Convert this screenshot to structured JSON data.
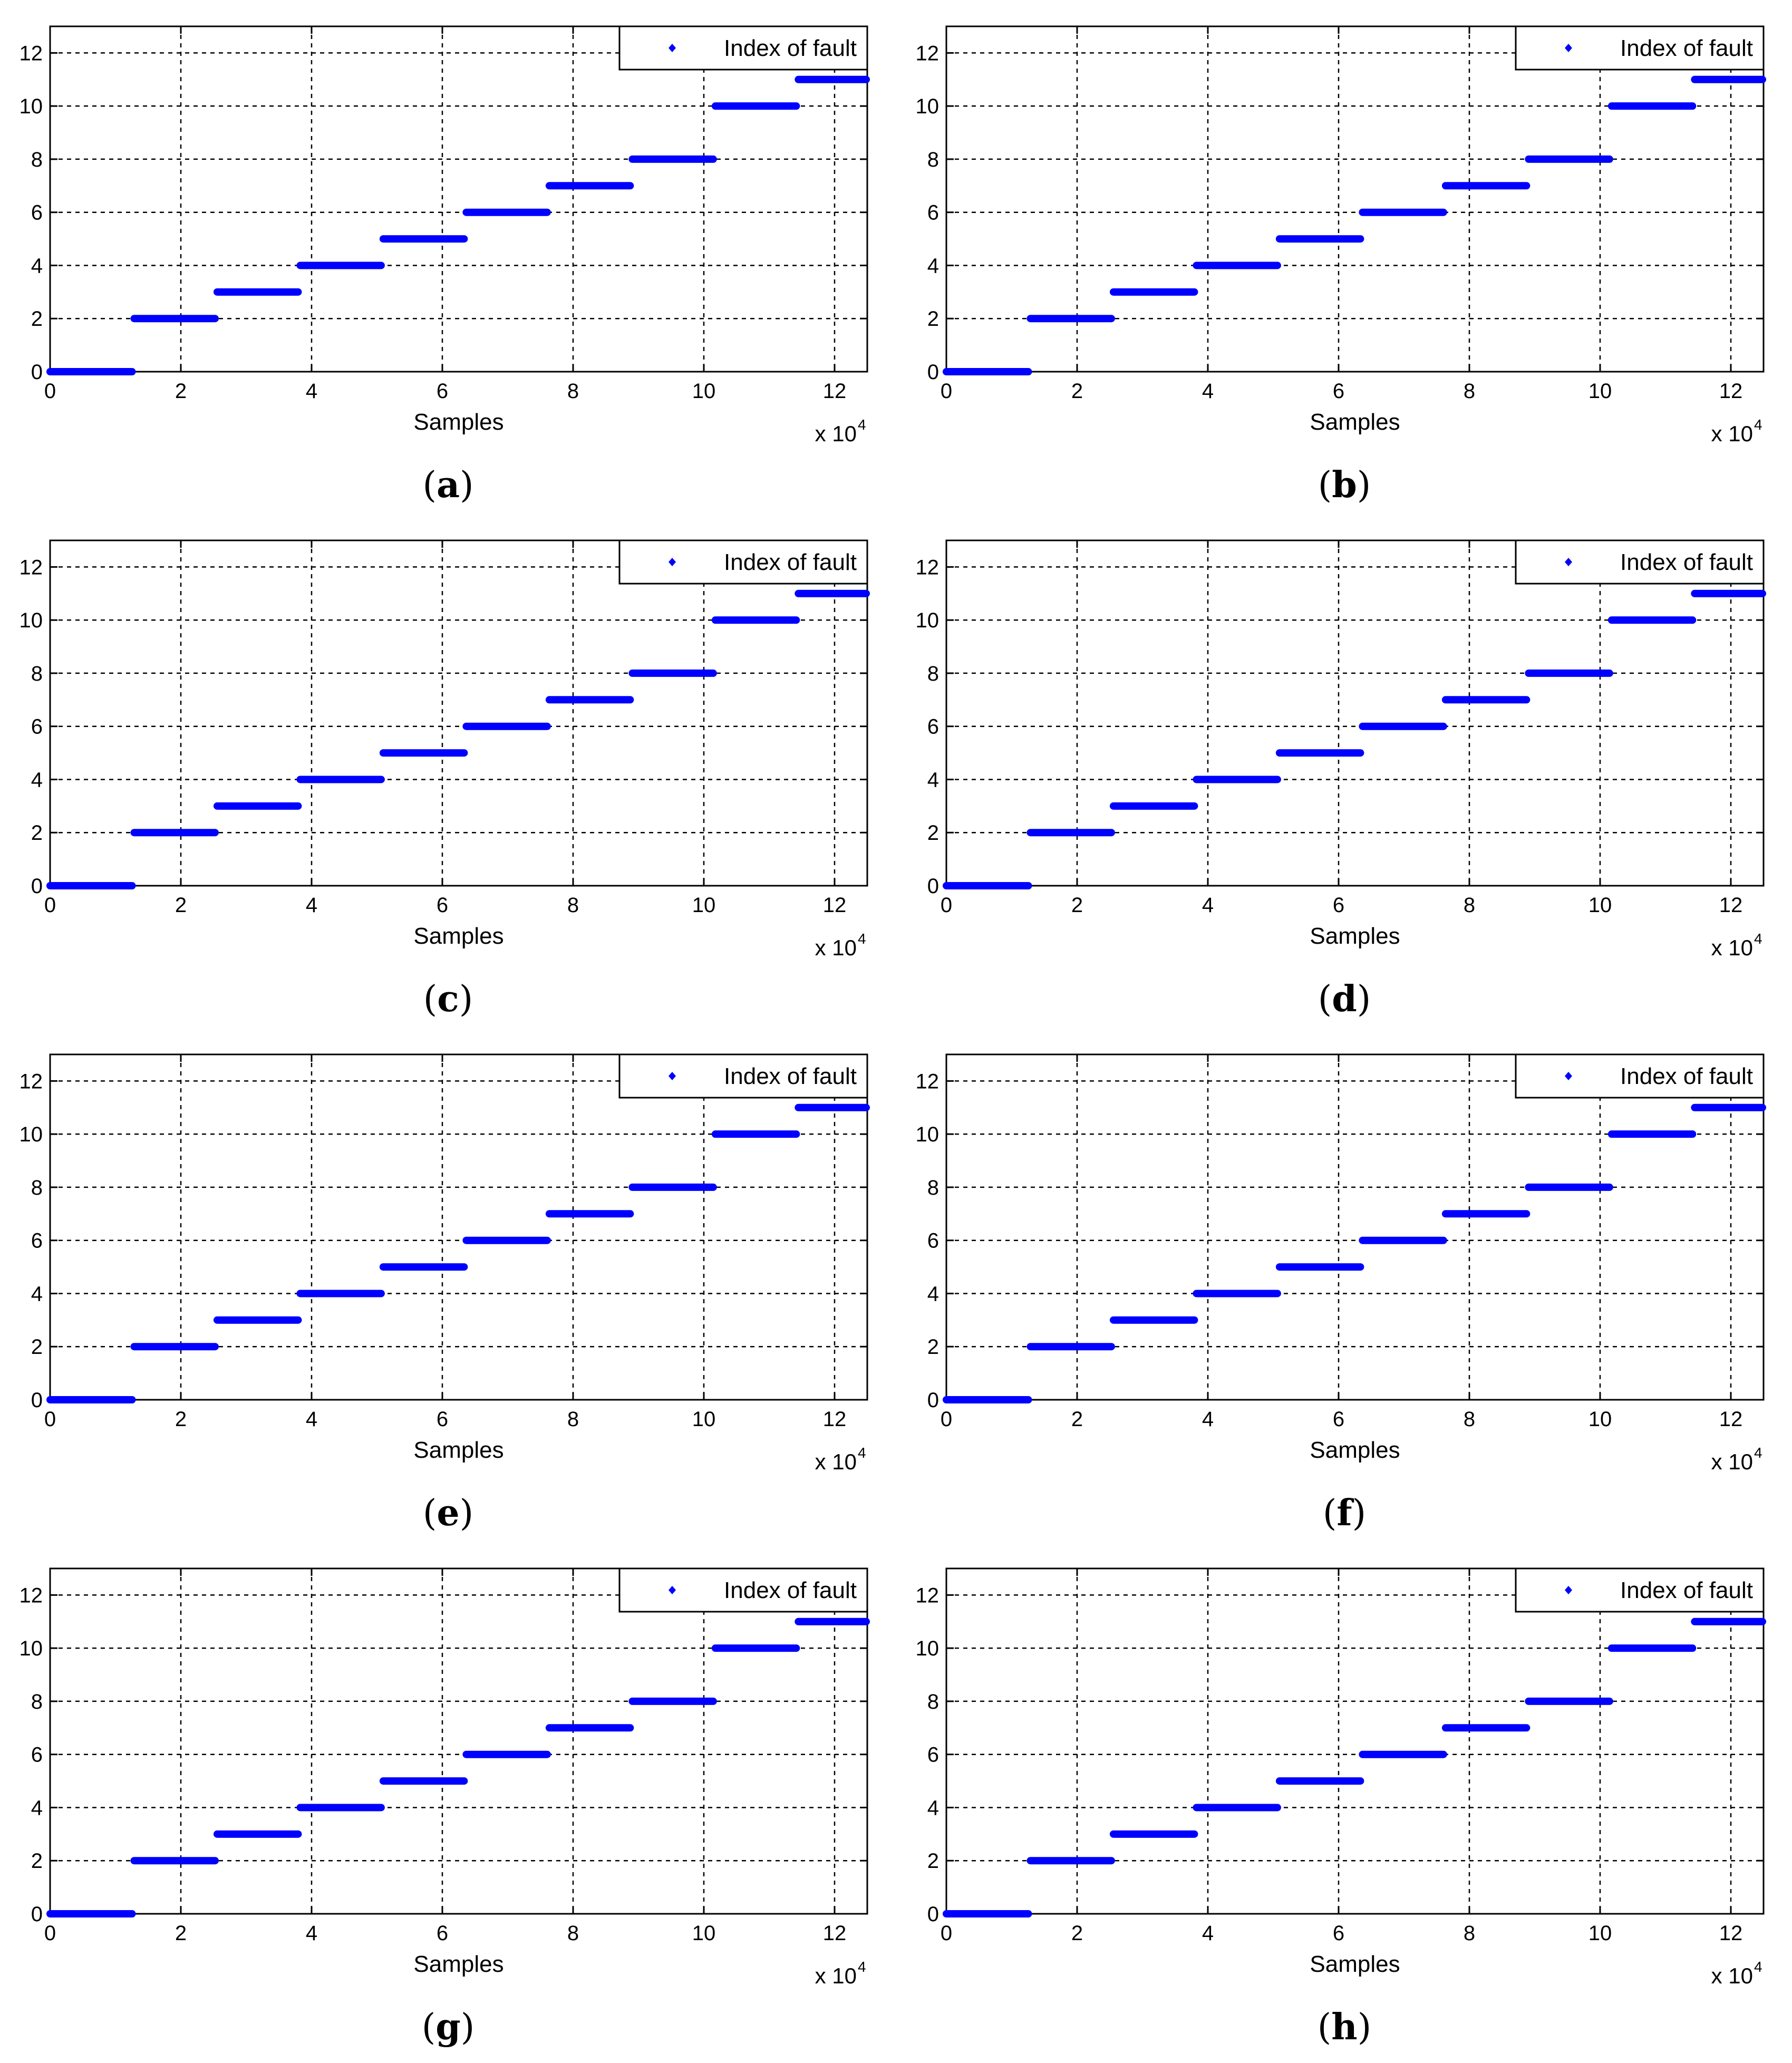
{
  "colors": {
    "series": "#0000ff",
    "axis": "#000000",
    "grid": "#000000"
  },
  "chart_data": [
    {
      "caption": "a",
      "type": "scatter",
      "xlabel": "Samples",
      "x_multiplier_base": "x 10",
      "x_multiplier_exp": "4",
      "xlim": [
        0,
        12.5
      ],
      "ylim": [
        0,
        13
      ],
      "xticks": [
        "0",
        "2",
        "4",
        "6",
        "8",
        "10",
        "12"
      ],
      "yticks": [
        "0",
        "2",
        "4",
        "6",
        "8",
        "10",
        "12"
      ],
      "grid": true,
      "legend": {
        "position": "top-right",
        "entries": [
          "Index of fault"
        ]
      },
      "series": [
        {
          "name": "Index of fault",
          "segments": [
            {
              "x0": 0,
              "x1": 1.27,
              "y": 0
            },
            {
              "x0": 1.27,
              "x1": 2.54,
              "y": 2
            },
            {
              "x0": 2.54,
              "x1": 3.81,
              "y": 3
            },
            {
              "x0": 3.81,
              "x1": 5.08,
              "y": 4
            },
            {
              "x0": 5.08,
              "x1": 6.35,
              "y": 5
            },
            {
              "x0": 6.35,
              "x1": 7.62,
              "y": 6
            },
            {
              "x0": 7.62,
              "x1": 8.89,
              "y": 7
            },
            {
              "x0": 8.89,
              "x1": 10.16,
              "y": 8
            },
            {
              "x0": 10.16,
              "x1": 11.43,
              "y": 10
            },
            {
              "x0": 11.43,
              "x1": 12.5,
              "y": 11
            }
          ]
        }
      ]
    },
    {
      "caption": "b",
      "type": "scatter",
      "xlabel": "Samples",
      "x_multiplier_base": "x 10",
      "x_multiplier_exp": "4",
      "xlim": [
        0,
        12.5
      ],
      "ylim": [
        0,
        13
      ],
      "xticks": [
        "0",
        "2",
        "4",
        "6",
        "8",
        "10",
        "12"
      ],
      "yticks": [
        "0",
        "2",
        "4",
        "6",
        "8",
        "10",
        "12"
      ],
      "grid": true,
      "legend": {
        "position": "top-right",
        "entries": [
          "Index of fault"
        ]
      },
      "series": [
        {
          "name": "Index of fault",
          "segments": [
            {
              "x0": 0,
              "x1": 1.27,
              "y": 0
            },
            {
              "x0": 1.27,
              "x1": 2.54,
              "y": 2
            },
            {
              "x0": 2.54,
              "x1": 3.81,
              "y": 3
            },
            {
              "x0": 3.81,
              "x1": 5.08,
              "y": 4
            },
            {
              "x0": 5.08,
              "x1": 6.35,
              "y": 5
            },
            {
              "x0": 6.35,
              "x1": 7.62,
              "y": 6
            },
            {
              "x0": 7.62,
              "x1": 8.89,
              "y": 7
            },
            {
              "x0": 8.89,
              "x1": 10.16,
              "y": 8
            },
            {
              "x0": 10.16,
              "x1": 11.43,
              "y": 10
            },
            {
              "x0": 11.43,
              "x1": 12.5,
              "y": 11
            }
          ]
        }
      ]
    },
    {
      "caption": "c",
      "type": "scatter",
      "xlabel": "Samples",
      "x_multiplier_base": "x 10",
      "x_multiplier_exp": "4",
      "xlim": [
        0,
        12.5
      ],
      "ylim": [
        0,
        13
      ],
      "xticks": [
        "0",
        "2",
        "4",
        "6",
        "8",
        "10",
        "12"
      ],
      "yticks": [
        "0",
        "2",
        "4",
        "6",
        "8",
        "10",
        "12"
      ],
      "grid": true,
      "legend": {
        "position": "top-right",
        "entries": [
          "Index of fault"
        ]
      },
      "series": [
        {
          "name": "Index of fault",
          "segments": [
            {
              "x0": 0,
              "x1": 1.27,
              "y": 0
            },
            {
              "x0": 1.27,
              "x1": 2.54,
              "y": 2
            },
            {
              "x0": 2.54,
              "x1": 3.81,
              "y": 3
            },
            {
              "x0": 3.81,
              "x1": 5.08,
              "y": 4
            },
            {
              "x0": 5.08,
              "x1": 6.35,
              "y": 5
            },
            {
              "x0": 6.35,
              "x1": 7.62,
              "y": 6
            },
            {
              "x0": 7.62,
              "x1": 8.89,
              "y": 7
            },
            {
              "x0": 8.89,
              "x1": 10.16,
              "y": 8
            },
            {
              "x0": 10.16,
              "x1": 11.43,
              "y": 10
            },
            {
              "x0": 11.43,
              "x1": 12.5,
              "y": 11
            }
          ]
        }
      ]
    },
    {
      "caption": "d",
      "type": "scatter",
      "xlabel": "Samples",
      "x_multiplier_base": "x 10",
      "x_multiplier_exp": "4",
      "xlim": [
        0,
        12.5
      ],
      "ylim": [
        0,
        13
      ],
      "xticks": [
        "0",
        "2",
        "4",
        "6",
        "8",
        "10",
        "12"
      ],
      "yticks": [
        "0",
        "2",
        "4",
        "6",
        "8",
        "10",
        "12"
      ],
      "grid": true,
      "legend": {
        "position": "top-right",
        "entries": [
          "Index of fault"
        ]
      },
      "series": [
        {
          "name": "Index of fault",
          "segments": [
            {
              "x0": 0,
              "x1": 1.27,
              "y": 0
            },
            {
              "x0": 1.27,
              "x1": 2.54,
              "y": 2
            },
            {
              "x0": 2.54,
              "x1": 3.81,
              "y": 3
            },
            {
              "x0": 3.81,
              "x1": 5.08,
              "y": 4
            },
            {
              "x0": 5.08,
              "x1": 6.35,
              "y": 5
            },
            {
              "x0": 6.35,
              "x1": 7.62,
              "y": 6
            },
            {
              "x0": 7.62,
              "x1": 8.89,
              "y": 7
            },
            {
              "x0": 8.89,
              "x1": 10.16,
              "y": 8
            },
            {
              "x0": 10.16,
              "x1": 11.43,
              "y": 10
            },
            {
              "x0": 11.43,
              "x1": 12.5,
              "y": 11
            }
          ]
        }
      ]
    },
    {
      "caption": "e",
      "type": "scatter",
      "xlabel": "Samples",
      "x_multiplier_base": "x 10",
      "x_multiplier_exp": "4",
      "xlim": [
        0,
        12.5
      ],
      "ylim": [
        0,
        13
      ],
      "xticks": [
        "0",
        "2",
        "4",
        "6",
        "8",
        "10",
        "12"
      ],
      "yticks": [
        "0",
        "2",
        "4",
        "6",
        "8",
        "10",
        "12"
      ],
      "grid": true,
      "legend": {
        "position": "top-right",
        "entries": [
          "Index of fault"
        ]
      },
      "series": [
        {
          "name": "Index of fault",
          "segments": [
            {
              "x0": 0,
              "x1": 1.27,
              "y": 0
            },
            {
              "x0": 1.27,
              "x1": 2.54,
              "y": 2
            },
            {
              "x0": 2.54,
              "x1": 3.81,
              "y": 3
            },
            {
              "x0": 3.81,
              "x1": 5.08,
              "y": 4
            },
            {
              "x0": 5.08,
              "x1": 6.35,
              "y": 5
            },
            {
              "x0": 6.35,
              "x1": 7.62,
              "y": 6
            },
            {
              "x0": 7.62,
              "x1": 8.89,
              "y": 7
            },
            {
              "x0": 8.89,
              "x1": 10.16,
              "y": 8
            },
            {
              "x0": 10.16,
              "x1": 11.43,
              "y": 10
            },
            {
              "x0": 11.43,
              "x1": 12.5,
              "y": 11
            }
          ]
        }
      ]
    },
    {
      "caption": "f",
      "type": "scatter",
      "xlabel": "Samples",
      "x_multiplier_base": "x 10",
      "x_multiplier_exp": "4",
      "xlim": [
        0,
        12.5
      ],
      "ylim": [
        0,
        13
      ],
      "xticks": [
        "0",
        "2",
        "4",
        "6",
        "8",
        "10",
        "12"
      ],
      "yticks": [
        "0",
        "2",
        "4",
        "6",
        "8",
        "10",
        "12"
      ],
      "grid": true,
      "legend": {
        "position": "top-right",
        "entries": [
          "Index of fault"
        ]
      },
      "series": [
        {
          "name": "Index of fault",
          "segments": [
            {
              "x0": 0,
              "x1": 1.27,
              "y": 0
            },
            {
              "x0": 1.27,
              "x1": 2.54,
              "y": 2
            },
            {
              "x0": 2.54,
              "x1": 3.81,
              "y": 3
            },
            {
              "x0": 3.81,
              "x1": 5.08,
              "y": 4
            },
            {
              "x0": 5.08,
              "x1": 6.35,
              "y": 5
            },
            {
              "x0": 6.35,
              "x1": 7.62,
              "y": 6
            },
            {
              "x0": 7.62,
              "x1": 8.89,
              "y": 7
            },
            {
              "x0": 8.89,
              "x1": 10.16,
              "y": 8
            },
            {
              "x0": 10.16,
              "x1": 11.43,
              "y": 10
            },
            {
              "x0": 11.43,
              "x1": 12.5,
              "y": 11
            }
          ]
        }
      ]
    },
    {
      "caption": "g",
      "type": "scatter",
      "xlabel": "Samples",
      "x_multiplier_base": "x 10",
      "x_multiplier_exp": "4",
      "xlim": [
        0,
        12.5
      ],
      "ylim": [
        0,
        13
      ],
      "xticks": [
        "0",
        "2",
        "4",
        "6",
        "8",
        "10",
        "12"
      ],
      "yticks": [
        "0",
        "2",
        "4",
        "6",
        "8",
        "10",
        "12"
      ],
      "grid": true,
      "legend": {
        "position": "top-right",
        "entries": [
          "Index of fault"
        ]
      },
      "series": [
        {
          "name": "Index of fault",
          "segments": [
            {
              "x0": 0,
              "x1": 1.27,
              "y": 0
            },
            {
              "x0": 1.27,
              "x1": 2.54,
              "y": 2
            },
            {
              "x0": 2.54,
              "x1": 3.81,
              "y": 3
            },
            {
              "x0": 3.81,
              "x1": 5.08,
              "y": 4
            },
            {
              "x0": 5.08,
              "x1": 6.35,
              "y": 5
            },
            {
              "x0": 6.35,
              "x1": 7.62,
              "y": 6
            },
            {
              "x0": 7.62,
              "x1": 8.89,
              "y": 7
            },
            {
              "x0": 8.89,
              "x1": 10.16,
              "y": 8
            },
            {
              "x0": 10.16,
              "x1": 11.43,
              "y": 10
            },
            {
              "x0": 11.43,
              "x1": 12.5,
              "y": 11
            }
          ]
        }
      ]
    },
    {
      "caption": "h",
      "type": "scatter",
      "xlabel": "Samples",
      "x_multiplier_base": "x 10",
      "x_multiplier_exp": "4",
      "xlim": [
        0,
        12.5
      ],
      "ylim": [
        0,
        13
      ],
      "xticks": [
        "0",
        "2",
        "4",
        "6",
        "8",
        "10",
        "12"
      ],
      "yticks": [
        "0",
        "2",
        "4",
        "6",
        "8",
        "10",
        "12"
      ],
      "grid": true,
      "legend": {
        "position": "top-right",
        "entries": [
          "Index of fault"
        ]
      },
      "series": [
        {
          "name": "Index of fault",
          "segments": [
            {
              "x0": 0,
              "x1": 1.27,
              "y": 0
            },
            {
              "x0": 1.27,
              "x1": 2.54,
              "y": 2
            },
            {
              "x0": 2.54,
              "x1": 3.81,
              "y": 3
            },
            {
              "x0": 3.81,
              "x1": 5.08,
              "y": 4
            },
            {
              "x0": 5.08,
              "x1": 6.35,
              "y": 5
            },
            {
              "x0": 6.35,
              "x1": 7.62,
              "y": 6
            },
            {
              "x0": 7.62,
              "x1": 8.89,
              "y": 7
            },
            {
              "x0": 8.89,
              "x1": 10.16,
              "y": 8
            },
            {
              "x0": 10.16,
              "x1": 11.43,
              "y": 10
            },
            {
              "x0": 11.43,
              "x1": 12.5,
              "y": 11
            }
          ]
        }
      ]
    }
  ]
}
